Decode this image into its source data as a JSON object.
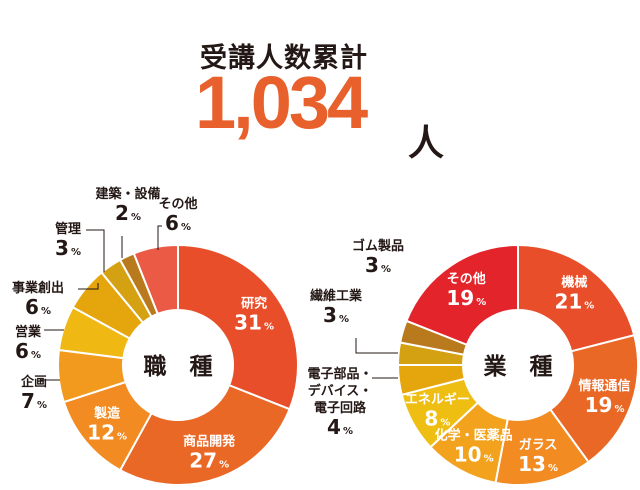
{
  "header": {
    "title": "受講人数累計",
    "total": "1,034",
    "unit": "人"
  },
  "chart_data": [
    {
      "type": "pie",
      "title": "職　種",
      "unit": "%",
      "slices": [
        {
          "name": "研究",
          "value": 31,
          "color": "#e94e2a",
          "label_color": "#ffffff"
        },
        {
          "name": "商品開発",
          "value": 27,
          "color": "#ea6826",
          "label_color": "#ffffff"
        },
        {
          "name": "製造",
          "value": 12,
          "color": "#f18b22",
          "label_color": "#ffffff"
        },
        {
          "name": "企画",
          "value": 7,
          "color": "#f29a1e",
          "label_color": "#231815"
        },
        {
          "name": "営業",
          "value": 6,
          "color": "#efb812",
          "label_color": "#231815"
        },
        {
          "name": "事業創出",
          "value": 6,
          "color": "#e5a50c",
          "label_color": "#231815"
        },
        {
          "name": "管理",
          "value": 3,
          "color": "#d4a113",
          "label_color": "#231815"
        },
        {
          "name": "建築・設備",
          "value": 2,
          "color": "#b97a1e",
          "label_color": "#231815"
        },
        {
          "name": "その他",
          "value": 6,
          "color": "#ea5a45",
          "label_color": "#231815"
        }
      ]
    },
    {
      "type": "pie",
      "title": "業　種",
      "unit": "%",
      "slices": [
        {
          "name": "機械",
          "value": 21,
          "color": "#e94e2a",
          "label_color": "#ffffff"
        },
        {
          "name": "情報通信",
          "value": 19,
          "color": "#ea6826",
          "label_color": "#ffffff"
        },
        {
          "name": "ガラス",
          "value": 13,
          "color": "#f18b22",
          "label_color": "#ffffff"
        },
        {
          "name": "化学・医薬品",
          "value": 10,
          "color": "#f2a21c",
          "label_color": "#ffffff"
        },
        {
          "name": "エネルギー",
          "value": 8,
          "color": "#efbe12",
          "label_color": "#ffffff"
        },
        {
          "name": "電子部品・デバイス・電子回路",
          "value": 4,
          "color": "#e5a50c",
          "label_color": "#231815"
        },
        {
          "name": "繊維工業",
          "value": 3,
          "color": "#d4a113",
          "label_color": "#231815"
        },
        {
          "name": "ゴム製品",
          "value": 3,
          "color": "#b97a1e",
          "label_color": "#231815"
        },
        {
          "name": "その他",
          "value": 19,
          "color": "#e3242b",
          "label_color": "#ffffff"
        }
      ]
    }
  ]
}
